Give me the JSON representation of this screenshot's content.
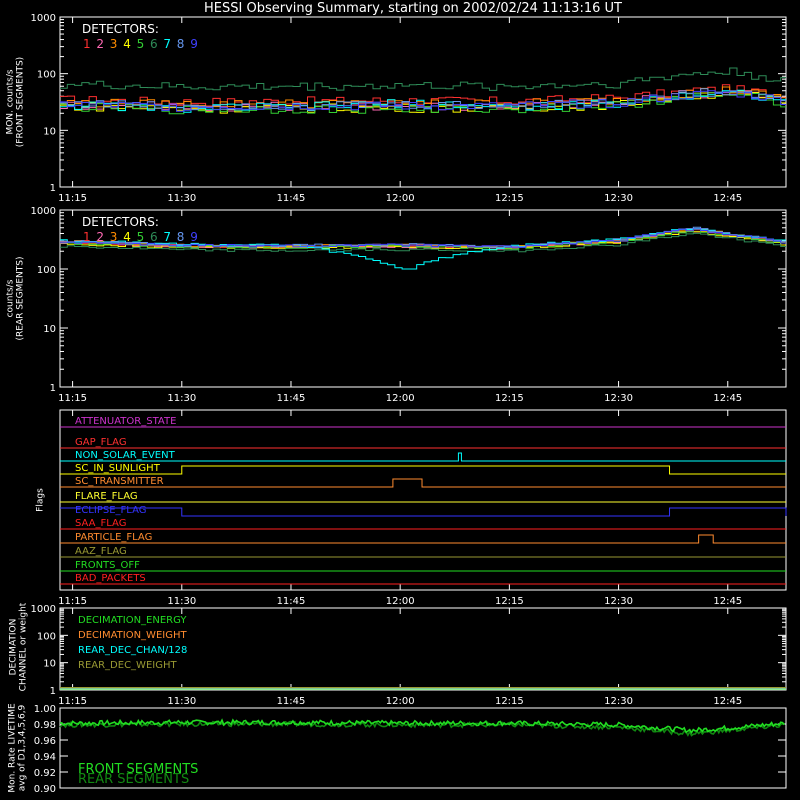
{
  "title": "HESSI Observing Summary, starting on 2002/02/24 11:13:16 UT",
  "colors": {
    "axis": "#ffffff",
    "detectors": [
      "#ff3030",
      "#ff69b4",
      "#ff8c00",
      "#ffff00",
      "#32cd32",
      "#2e8b57",
      "#00ffff",
      "#6495ed",
      "#4040ff"
    ],
    "front_green": "#22dd22",
    "rear_green": "#118811"
  },
  "x_ticks": [
    "11:15",
    "11:30",
    "11:45",
    "12:00",
    "12:15",
    "12:30",
    "12:45"
  ],
  "panels": {
    "front": {
      "ylabel": [
        "MON. counts/s",
        "(FRONT SEGMENTS)"
      ],
      "y_ticks": [
        "1",
        "10",
        "100",
        "1000"
      ],
      "legend_title": "DETECTORS:",
      "legend_numbers": [
        "1",
        "2",
        "3",
        "4",
        "5",
        "6",
        "7",
        "8",
        "9"
      ]
    },
    "rear": {
      "ylabel": [
        "counts/s",
        "(REAR SEGMENTS)"
      ],
      "y_ticks": [
        "1",
        "10",
        "100",
        "1000"
      ],
      "legend_title": "DETECTORS:",
      "legend_numbers": [
        "1",
        "2",
        "3",
        "4",
        "5",
        "6",
        "7",
        "8",
        "9"
      ]
    },
    "flags": {
      "ylabel": "Flags",
      "items": [
        {
          "name": "ATTENUATOR_STATE",
          "color": "#cc33cc"
        },
        {
          "name": "GAP_FLAG",
          "color": "#ff3030"
        },
        {
          "name": "NON_SOLAR_EVENT",
          "color": "#00ffff"
        },
        {
          "name": "SC_IN_SUNLIGHT",
          "color": "#ffff00"
        },
        {
          "name": "SC_TRANSMITTER",
          "color": "#ff8c30"
        },
        {
          "name": "FLARE_FLAG",
          "color": "#ffff30"
        },
        {
          "name": "ECLIPSE_FLAG",
          "color": "#3333ff"
        },
        {
          "name": "SAA_FLAG",
          "color": "#ff2020"
        },
        {
          "name": "PARTICLE_FLAG",
          "color": "#ff8c30"
        },
        {
          "name": "AAZ_FLAG",
          "color": "#999933"
        },
        {
          "name": "FRONTS_OFF",
          "color": "#22dd22"
        },
        {
          "name": "BAD_PACKETS",
          "color": "#ff2020"
        }
      ]
    },
    "decimation": {
      "ylabel": [
        "DECIMATION",
        "CHANNEL or weight"
      ],
      "y_ticks": [
        "1",
        "10",
        "100",
        "1000"
      ],
      "legend": [
        {
          "name": "DECIMATION_ENERGY",
          "color": "#22dd22"
        },
        {
          "name": "DECIMATION_WEIGHT",
          "color": "#ff8c30"
        },
        {
          "name": "REAR_DEC_CHAN/128",
          "color": "#00ffff"
        },
        {
          "name": "REAR_DEC_WEIGHT",
          "color": "#999933"
        }
      ]
    },
    "livetime": {
      "ylabel": [
        "Mon. Rate LIVETIME",
        "avg of D1,3,4,5,6,9"
      ],
      "y_ticks": [
        "0.90",
        "0.92",
        "0.94",
        "0.96",
        "0.98",
        "1.00"
      ],
      "legend": [
        {
          "name": "FRONT SEGMENTS",
          "color": "#22dd22"
        },
        {
          "name": "REAR SEGMENTS",
          "color": "#118811"
        }
      ]
    }
  },
  "chart_data": [
    {
      "type": "line",
      "title": "HESSI Observing Summary, starting on 2002/02/24 11:13:16 UT",
      "ylabel": "MON. counts/s (FRONT SEGMENTS)",
      "y_scale": "log",
      "ylim": [
        1,
        1000
      ],
      "x_range": [
        "11:13",
        "12:53"
      ],
      "x": [
        "11:15",
        "11:30",
        "11:45",
        "12:00",
        "12:15",
        "12:30",
        "12:40",
        "12:45",
        "12:53"
      ],
      "series": [
        {
          "name": "1",
          "values": [
            35,
            32,
            33,
            34,
            33,
            38,
            50,
            55,
            40
          ]
        },
        {
          "name": "2",
          "values": [
            28,
            26,
            27,
            27,
            27,
            31,
            44,
            48,
            34
          ]
        },
        {
          "name": "3",
          "values": [
            31,
            29,
            30,
            30,
            30,
            34,
            48,
            52,
            36
          ]
        },
        {
          "name": "4",
          "values": [
            27,
            24,
            25,
            25,
            25,
            29,
            42,
            46,
            32
          ]
        },
        {
          "name": "5",
          "values": [
            26,
            23,
            24,
            24,
            24,
            28,
            40,
            44,
            30
          ]
        },
        {
          "name": "6",
          "values": [
            65,
            58,
            60,
            62,
            60,
            68,
            100,
            110,
            75
          ]
        },
        {
          "name": "7",
          "values": [
            28,
            25,
            26,
            30,
            26,
            30,
            44,
            48,
            33
          ]
        },
        {
          "name": "8",
          "values": [
            30,
            27,
            28,
            28,
            28,
            32,
            45,
            50,
            35
          ]
        },
        {
          "name": "9",
          "values": [
            29,
            26,
            27,
            27,
            27,
            31,
            43,
            47,
            33
          ]
        }
      ]
    },
    {
      "type": "line",
      "ylabel": "counts/s (REAR SEGMENTS)",
      "y_scale": "log",
      "ylim": [
        1,
        1000
      ],
      "x_range": [
        "11:13",
        "12:53"
      ],
      "x": [
        "11:15",
        "11:30",
        "11:45",
        "12:00",
        "12:15",
        "12:30",
        "12:40",
        "12:45",
        "12:53"
      ],
      "series": [
        {
          "name": "1",
          "values": [
            280,
            245,
            240,
            250,
            230,
            300,
            470,
            380,
            270
          ]
        },
        {
          "name": "2",
          "values": [
            270,
            240,
            235,
            240,
            225,
            290,
            450,
            365,
            260
          ]
        },
        {
          "name": "3",
          "values": [
            290,
            250,
            245,
            255,
            235,
            305,
            480,
            385,
            275
          ]
        },
        {
          "name": "4",
          "values": [
            265,
            235,
            230,
            240,
            220,
            285,
            440,
            355,
            255
          ]
        },
        {
          "name": "5",
          "values": [
            275,
            240,
            235,
            245,
            225,
            295,
            455,
            370,
            262
          ]
        },
        {
          "name": "6",
          "values": [
            240,
            210,
            205,
            215,
            200,
            260,
            400,
            330,
            235
          ]
        },
        {
          "name": "7",
          "values": [
            300,
            260,
            255,
            100,
            245,
            320,
            500,
            400,
            285
          ]
        },
        {
          "name": "8",
          "values": [
            295,
            255,
            250,
            260,
            240,
            315,
            495,
            395,
            280
          ]
        },
        {
          "name": "9",
          "values": [
            285,
            250,
            245,
            255,
            235,
            305,
            480,
            385,
            275
          ]
        }
      ]
    },
    {
      "type": "line",
      "ylabel": "Flags",
      "x_range": [
        "11:13",
        "12:53"
      ],
      "flag_intervals": {
        "NON_SOLAR_EVENT": [
          [
            "12:08",
            "12:08"
          ]
        ],
        "SC_IN_SUNLIGHT": [
          [
            "11:30",
            "12:37"
          ]
        ],
        "SC_TRANSMITTER": [
          [
            "11:59",
            "12:03"
          ]
        ],
        "ECLIPSE_FLAG": [
          [
            "11:13",
            "11:30"
          ],
          [
            "12:37",
            "12:53"
          ]
        ],
        "PARTICLE_FLAG": [
          [
            "12:41",
            "12:43"
          ]
        ]
      }
    },
    {
      "type": "line",
      "ylabel": "DECIMATION CHANNEL or weight",
      "y_scale": "log",
      "ylim": [
        1,
        1000
      ],
      "x_range": [
        "11:13",
        "12:53"
      ],
      "series": [
        {
          "name": "DECIMATION_ENERGY",
          "values": [
            1,
            1
          ]
        },
        {
          "name": "DECIMATION_WEIGHT",
          "values": [
            1,
            1
          ]
        },
        {
          "name": "REAR_DEC_CHAN/128",
          "values": [
            1,
            1
          ]
        },
        {
          "name": "REAR_DEC_WEIGHT",
          "values": [
            1,
            1
          ]
        }
      ]
    },
    {
      "type": "line",
      "ylabel": "Mon. Rate LIVETIME avg of D1,3,4,5,6,9",
      "ylim": [
        0.9,
        1.0
      ],
      "x_range": [
        "11:13",
        "12:53"
      ],
      "x": [
        "11:15",
        "11:30",
        "11:45",
        "12:00",
        "12:15",
        "12:30",
        "12:40",
        "12:45",
        "12:53"
      ],
      "series": [
        {
          "name": "FRONT SEGMENTS",
          "values": [
            0.981,
            0.982,
            0.982,
            0.981,
            0.981,
            0.979,
            0.972,
            0.975,
            0.981
          ]
        },
        {
          "name": "REAR SEGMENTS",
          "values": [
            0.979,
            0.98,
            0.98,
            0.979,
            0.979,
            0.976,
            0.968,
            0.972,
            0.979
          ]
        }
      ]
    }
  ]
}
